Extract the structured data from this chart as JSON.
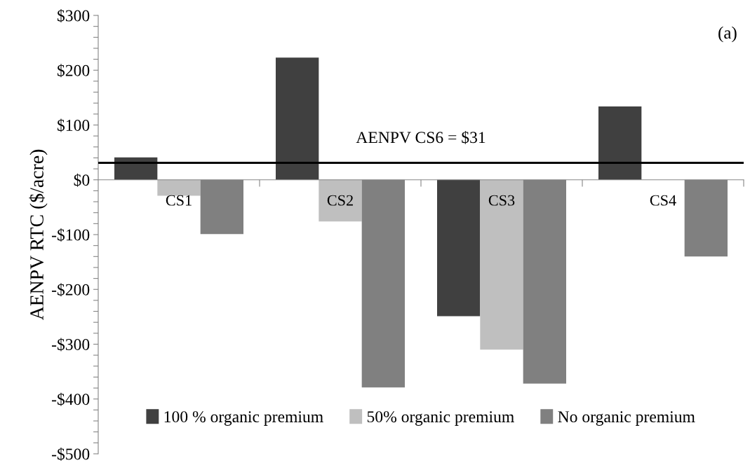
{
  "chart_data": {
    "type": "bar",
    "categories": [
      "CS1",
      "CS2",
      "CS3",
      "CS4"
    ],
    "ylabel": "AENPV RTC ($/acre)",
    "series": [
      {
        "name": "100 % organic premium",
        "color": "#404040",
        "values": [
          41,
          223,
          -249,
          134
        ]
      },
      {
        "name": "50% organic premium",
        "color": "#bfbfbf",
        "values": [
          -29,
          -76,
          -310,
          null
        ]
      },
      {
        "name": "No organic premium",
        "color": "#808080",
        "values": [
          -99,
          -379,
          -372,
          -140
        ]
      }
    ],
    "ylim": [
      -500,
      300
    ],
    "yticks": [
      {
        "value": -500,
        "label": "-$500"
      },
      {
        "value": -480,
        "label": null
      },
      {
        "value": -460,
        "label": null
      },
      {
        "value": -440,
        "label": null
      },
      {
        "value": -420,
        "label": null
      },
      {
        "value": -400,
        "label": "-$400"
      },
      {
        "value": -380,
        "label": null
      },
      {
        "value": -360,
        "label": null
      },
      {
        "value": -340,
        "label": null
      },
      {
        "value": -320,
        "label": null
      },
      {
        "value": -300,
        "label": "-$300"
      },
      {
        "value": -280,
        "label": null
      },
      {
        "value": -260,
        "label": null
      },
      {
        "value": -240,
        "label": null
      },
      {
        "value": -220,
        "label": null
      },
      {
        "value": -200,
        "label": "-$200"
      },
      {
        "value": -180,
        "label": null
      },
      {
        "value": -160,
        "label": null
      },
      {
        "value": -140,
        "label": null
      },
      {
        "value": -120,
        "label": null
      },
      {
        "value": -100,
        "label": "-$100"
      },
      {
        "value": -80,
        "label": null
      },
      {
        "value": -60,
        "label": null
      },
      {
        "value": -40,
        "label": null
      },
      {
        "value": -20,
        "label": null
      },
      {
        "value": 0,
        "label": "$0"
      },
      {
        "value": 20,
        "label": null
      },
      {
        "value": 40,
        "label": null
      },
      {
        "value": 60,
        "label": null
      },
      {
        "value": 80,
        "label": null
      },
      {
        "value": 100,
        "label": "$100"
      },
      {
        "value": 120,
        "label": null
      },
      {
        "value": 140,
        "label": null
      },
      {
        "value": 160,
        "label": null
      },
      {
        "value": 180,
        "label": null
      },
      {
        "value": 200,
        "label": "$200"
      },
      {
        "value": 220,
        "label": null
      },
      {
        "value": 240,
        "label": null
      },
      {
        "value": 260,
        "label": null
      },
      {
        "value": 280,
        "label": null
      },
      {
        "value": 300,
        "label": "$300"
      }
    ],
    "ref_lines": [
      {
        "axis": "y",
        "value": 31,
        "label": "AENPV CS6 = $31",
        "color": "#000000",
        "line_style": "solid"
      }
    ],
    "annotations": [
      "(a)"
    ],
    "legend": "bottom",
    "grid": false
  }
}
